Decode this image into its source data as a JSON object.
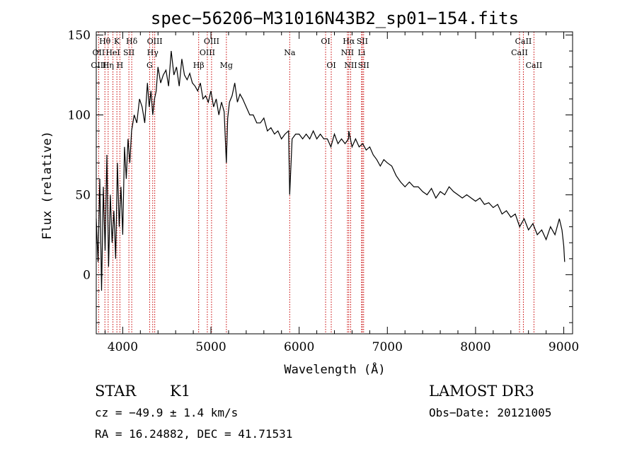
{
  "chart_data": {
    "type": "line",
    "title": "spec−56206−M31016N43B2_sp01−154.fits",
    "xlabel": "Wavelength (Å)",
    "ylabel": "Flux (relative)",
    "xlim": [
      3700,
      9100
    ],
    "ylim": [
      -37,
      152
    ],
    "xticks": [
      4000,
      5000,
      6000,
      7000,
      8000,
      9000
    ],
    "yticks": [
      0,
      50,
      100,
      150
    ],
    "series": [
      {
        "name": "flux",
        "color": "#000000",
        "x": [
          3700,
          3720,
          3740,
          3760,
          3780,
          3800,
          3820,
          3840,
          3860,
          3880,
          3900,
          3920,
          3940,
          3960,
          3980,
          4000,
          4020,
          4040,
          4060,
          4080,
          4100,
          4130,
          4160,
          4190,
          4220,
          4250,
          4280,
          4300,
          4320,
          4340,
          4360,
          4380,
          4400,
          4430,
          4460,
          4490,
          4520,
          4550,
          4580,
          4610,
          4640,
          4670,
          4700,
          4730,
          4760,
          4790,
          4820,
          4850,
          4880,
          4910,
          4940,
          4970,
          5000,
          5030,
          5060,
          5090,
          5120,
          5150,
          5175,
          5190,
          5210,
          5240,
          5270,
          5300,
          5330,
          5360,
          5400,
          5440,
          5480,
          5520,
          5560,
          5600,
          5640,
          5680,
          5720,
          5760,
          5800,
          5840,
          5880,
          5893,
          5920,
          5960,
          6000,
          6040,
          6080,
          6120,
          6160,
          6200,
          6240,
          6280,
          6320,
          6360,
          6400,
          6440,
          6480,
          6520,
          6560,
          6563,
          6600,
          6640,
          6680,
          6720,
          6760,
          6800,
          6840,
          6880,
          6920,
          6960,
          7000,
          7050,
          7100,
          7150,
          7200,
          7250,
          7300,
          7350,
          7400,
          7450,
          7500,
          7550,
          7600,
          7650,
          7700,
          7750,
          7800,
          7850,
          7900,
          7950,
          8000,
          8050,
          8100,
          8150,
          8200,
          8250,
          8300,
          8350,
          8400,
          8450,
          8500,
          8550,
          8600,
          8650,
          8700,
          8750,
          8800,
          8850,
          8900,
          8950,
          8980,
          9000,
          9010
        ],
        "y": [
          35,
          8,
          60,
          -10,
          55,
          15,
          75,
          5,
          50,
          20,
          40,
          10,
          70,
          30,
          55,
          25,
          80,
          60,
          85,
          70,
          90,
          100,
          95,
          110,
          105,
          95,
          120,
          105,
          115,
          100,
          110,
          115,
          130,
          120,
          125,
          128,
          118,
          140,
          125,
          130,
          118,
          135,
          125,
          122,
          126,
          120,
          118,
          115,
          120,
          110,
          112,
          108,
          115,
          105,
          110,
          100,
          108,
          102,
          70,
          98,
          108,
          112,
          120,
          108,
          113,
          110,
          105,
          100,
          100,
          95,
          95,
          98,
          90,
          92,
          88,
          90,
          85,
          88,
          90,
          50,
          85,
          88,
          88,
          85,
          88,
          85,
          90,
          85,
          88,
          85,
          85,
          80,
          88,
          82,
          85,
          82,
          85,
          90,
          80,
          85,
          80,
          82,
          78,
          80,
          75,
          72,
          68,
          72,
          70,
          68,
          62,
          58,
          55,
          58,
          55,
          55,
          52,
          50,
          54,
          48,
          52,
          50,
          55,
          52,
          50,
          48,
          50,
          48,
          46,
          48,
          44,
          45,
          42,
          44,
          38,
          40,
          36,
          38,
          30,
          35,
          28,
          32,
          25,
          28,
          22,
          30,
          25,
          35,
          28,
          18,
          8
        ]
      }
    ],
    "spectral_lines": [
      {
        "label": "Hθ",
        "wavelength": 3798,
        "row": 1
      },
      {
        "label": "OII",
        "wavelength": 3727,
        "row": 2
      },
      {
        "label": "OIII",
        "wavelength": 3727,
        "row": 3
      },
      {
        "label": "K",
        "wavelength": 3934,
        "row": 1
      },
      {
        "label": "HeI",
        "wavelength": 3889,
        "row": 2
      },
      {
        "label": "Hη",
        "wavelength": 3835,
        "row": 3
      },
      {
        "label": "Hδ",
        "wavelength": 4102,
        "row": 1
      },
      {
        "label": "SII",
        "wavelength": 4070,
        "row": 2
      },
      {
        "label": "H",
        "wavelength": 3968,
        "row": 3
      },
      {
        "label": "OIII",
        "wavelength": 4363,
        "row": 1
      },
      {
        "label": "Hγ",
        "wavelength": 4340,
        "row": 2
      },
      {
        "label": "G",
        "wavelength": 4305,
        "row": 3
      },
      {
        "label": "OIII",
        "wavelength": 5007,
        "row": 1
      },
      {
        "label": "OIII",
        "wavelength": 4959,
        "row": 2
      },
      {
        "label": "Hβ",
        "wavelength": 4861,
        "row": 3
      },
      {
        "label": "Mg",
        "wavelength": 5175,
        "row": 3
      },
      {
        "label": "Na",
        "wavelength": 5893,
        "row": 2
      },
      {
        "label": "OI",
        "wavelength": 6300,
        "row": 1
      },
      {
        "label": "OI",
        "wavelength": 6364,
        "row": 3
      },
      {
        "label": "Hα",
        "wavelength": 6563,
        "row": 1
      },
      {
        "label": "SII",
        "wavelength": 6716,
        "row": 1
      },
      {
        "label": "NII",
        "wavelength": 6548,
        "row": 2
      },
      {
        "label": "Li",
        "wavelength": 6708,
        "row": 2
      },
      {
        "label": "NII",
        "wavelength": 6584,
        "row": 3
      },
      {
        "label": "SII",
        "wavelength": 6731,
        "row": 3
      },
      {
        "label": "CaII",
        "wavelength": 8542,
        "row": 1
      },
      {
        "label": "CaII",
        "wavelength": 8498,
        "row": 2
      },
      {
        "label": "CaII",
        "wavelength": 8662,
        "row": 3
      }
    ],
    "line_marker_color": "#c80000"
  },
  "info": {
    "object_type": "STAR",
    "subclass": "K1",
    "survey": "LAMOST DR3",
    "redshift": "cz = −49.9 ± 1.4 km/s",
    "obs_date": "Obs−Date: 20121005",
    "coords": "RA =  16.24882, DEC =  41.71531"
  }
}
